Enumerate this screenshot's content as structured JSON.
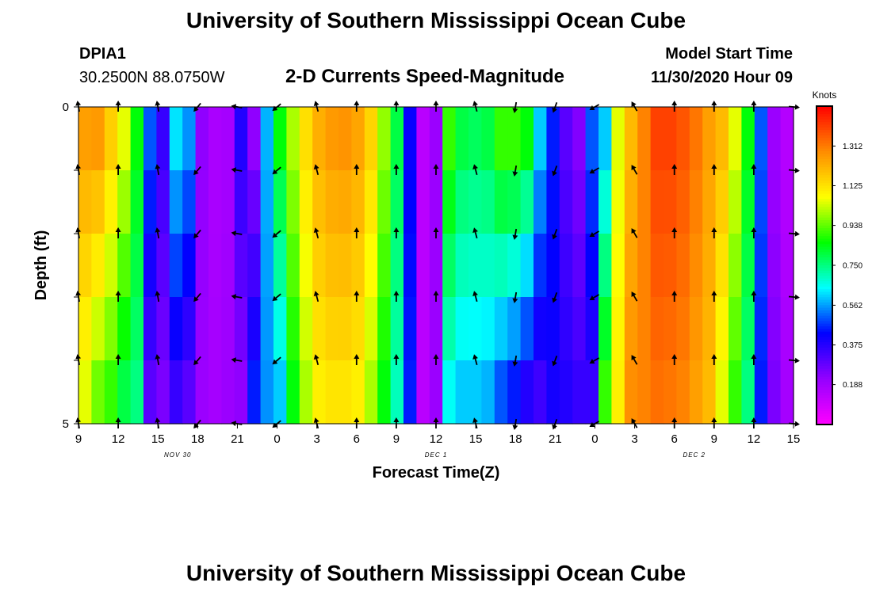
{
  "header": {
    "title": "University of Southern Mississippi Ocean Cube",
    "station_id": "DPIA1",
    "station_coords": "30.2500N 88.0750W",
    "subtitle": "2-D Currents Speed-Magnitude",
    "model_label": "Model Start Time",
    "model_time": "11/30/2020 Hour 09"
  },
  "footer": {
    "title": "University of Southern Mississippi Ocean Cube"
  },
  "chart_data": {
    "type": "heatmap",
    "title": "2-D Currents Speed-Magnitude",
    "xlabel": "Forecast Time(Z)",
    "ylabel": "Depth (ft)",
    "x_tick_labels": [
      "9",
      "12",
      "15",
      "18",
      "21",
      "0",
      "3",
      "6",
      "9",
      "12",
      "15",
      "18",
      "21",
      "0",
      "3",
      "6",
      "9",
      "12",
      "15"
    ],
    "date_labels": [
      {
        "text": "NOV 30",
        "at_index": 2.5
      },
      {
        "text": "DEC 1",
        "at_index": 9
      },
      {
        "text": "DEC 2",
        "at_index": 15.5
      }
    ],
    "y_tick_labels": [
      "0",
      "5"
    ],
    "ylim": [
      0,
      5
    ],
    "depth_levels": [
      0,
      1,
      2,
      3,
      4,
      5
    ],
    "colorbar": {
      "unit": "Knots",
      "ticks": [
        "1.312",
        "1.125",
        "0.938",
        "0.750",
        "0.562",
        "0.375",
        "0.188"
      ],
      "range": [
        0.0,
        1.5
      ],
      "stops": [
        "#ff00ff",
        "#9400ff",
        "#0000ff",
        "#00ffff",
        "#00ff00",
        "#ffff00",
        "#ff8c00",
        "#ff0000"
      ]
    },
    "speed_profile_hours": [
      0,
      1,
      2,
      3,
      4,
      5,
      6,
      7,
      8,
      9,
      10,
      11,
      12,
      13,
      14,
      15,
      16,
      17,
      18,
      19,
      20,
      21,
      22,
      23,
      24,
      25,
      26,
      27,
      28,
      29,
      30,
      31,
      32,
      33,
      34,
      35,
      36,
      37,
      38,
      39,
      40,
      41,
      42,
      43,
      44,
      45,
      46,
      47,
      48,
      49,
      50,
      51,
      52,
      53,
      54
    ],
    "speed_surface": [
      1.25,
      1.26,
      1.16,
      1.05,
      0.85,
      0.5,
      0.35,
      0.62,
      0.55,
      0.22,
      0.17,
      0.18,
      0.38,
      0.22,
      0.58,
      0.85,
      1.0,
      1.13,
      1.22,
      1.26,
      1.27,
      1.24,
      1.15,
      0.98,
      0.8,
      0.42,
      0.14,
      0.2,
      0.9,
      0.8,
      0.78,
      0.8,
      0.9,
      0.9,
      0.85,
      0.6,
      0.45,
      0.3,
      0.24,
      0.5,
      0.6,
      1.05,
      1.2,
      1.3,
      1.4,
      1.4,
      1.37,
      1.32,
      1.25,
      1.2,
      1.05,
      0.85,
      0.5,
      0.2,
      0.15
    ],
    "speed_bottom": [
      1.05,
      0.95,
      0.9,
      0.8,
      0.75,
      0.3,
      0.25,
      0.35,
      0.3,
      0.2,
      0.18,
      0.2,
      0.22,
      0.45,
      0.55,
      0.6,
      0.85,
      1.0,
      1.1,
      1.12,
      1.12,
      1.1,
      1.0,
      0.85,
      0.7,
      0.45,
      0.14,
      0.2,
      0.65,
      0.6,
      0.6,
      0.58,
      0.5,
      0.45,
      0.38,
      0.34,
      0.4,
      0.38,
      0.35,
      0.35,
      0.9,
      1.1,
      1.28,
      1.3,
      1.33,
      1.32,
      1.3,
      1.25,
      1.2,
      1.05,
      0.9,
      0.75,
      0.45,
      0.25,
      0.18
    ],
    "arrow_times_index": [
      0,
      1,
      2,
      3,
      4,
      5,
      6,
      7,
      8,
      9,
      10,
      11,
      12,
      13,
      14,
      15,
      16,
      17,
      18
    ],
    "arrow_depths": [
      0,
      1,
      2,
      3,
      4,
      5
    ],
    "arrow_direction_deg": [
      170,
      180,
      170,
      40,
      100,
      50,
      165,
      180,
      180,
      180,
      165,
      10,
      20,
      60,
      150,
      180,
      180,
      180,
      275
    ]
  }
}
